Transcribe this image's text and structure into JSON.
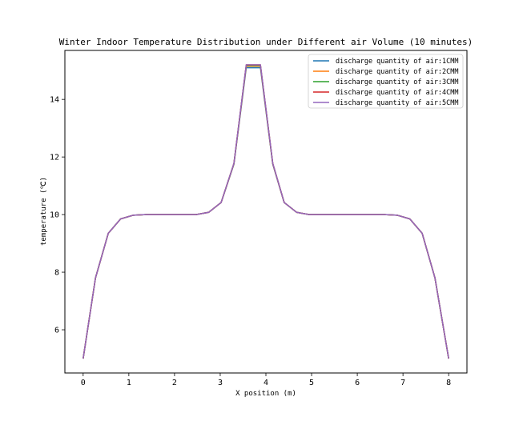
{
  "chart_data": {
    "type": "line",
    "title": "Winter Indoor Temperature Distribution under Different air Volume (10 minutes)",
    "xlabel": "X position (m)",
    "ylabel": "temperature (℃)",
    "xlim": [
      -0.4,
      8.4
    ],
    "ylim": [
      4.5,
      15.7
    ],
    "xticks": [
      0,
      1,
      2,
      3,
      4,
      5,
      6,
      7,
      8
    ],
    "yticks": [
      6,
      8,
      10,
      12,
      14
    ],
    "grid": false,
    "legend_position": "top-right",
    "x": [
      0,
      0.27,
      0.55,
      0.82,
      1.1,
      1.37,
      1.65,
      1.92,
      2.2,
      2.47,
      2.75,
      3.02,
      3.3,
      3.57,
      3.6,
      3.85,
      3.88,
      4.15,
      4.4,
      4.67,
      4.95,
      5.22,
      5.5,
      5.77,
      6.05,
      6.32,
      6.6,
      6.87,
      7.15,
      7.42,
      7.7,
      8.0
    ],
    "series": [
      {
        "name": "discharge quantity of air:1CMM",
        "color": "#1f77b4",
        "values": [
          5.0,
          7.8,
          9.35,
          9.85,
          9.98,
          10.0,
          10.0,
          10.0,
          10.0,
          10.0,
          10.08,
          10.42,
          11.75,
          15.1,
          15.1,
          15.1,
          15.1,
          11.75,
          10.42,
          10.08,
          10.0,
          10.0,
          10.0,
          10.0,
          10.0,
          10.0,
          10.0,
          9.98,
          9.85,
          9.35,
          7.8,
          5.0
        ]
      },
      {
        "name": "discharge quantity of air:2CMM",
        "color": "#ff7f0e",
        "values": [
          5.0,
          7.8,
          9.35,
          9.85,
          9.98,
          10.0,
          10.0,
          10.0,
          10.0,
          10.0,
          10.08,
          10.42,
          11.76,
          15.15,
          15.15,
          15.15,
          15.15,
          11.76,
          10.42,
          10.08,
          10.0,
          10.0,
          10.0,
          10.0,
          10.0,
          10.0,
          10.0,
          9.98,
          9.85,
          9.35,
          7.8,
          5.0
        ]
      },
      {
        "name": "discharge quantity of air:3CMM",
        "color": "#2ca02c",
        "values": [
          5.0,
          7.8,
          9.35,
          9.85,
          9.98,
          10.0,
          10.0,
          10.0,
          10.0,
          10.0,
          10.08,
          10.42,
          11.77,
          15.18,
          15.18,
          15.18,
          15.18,
          11.77,
          10.42,
          10.08,
          10.0,
          10.0,
          10.0,
          10.0,
          10.0,
          10.0,
          10.0,
          9.98,
          9.85,
          9.35,
          7.8,
          5.0
        ]
      },
      {
        "name": "discharge quantity of air:4CMM",
        "color": "#d62728",
        "values": [
          5.0,
          7.8,
          9.35,
          9.85,
          9.98,
          10.0,
          10.0,
          10.0,
          10.0,
          10.0,
          10.08,
          10.42,
          11.78,
          15.2,
          15.2,
          15.2,
          15.2,
          11.78,
          10.42,
          10.08,
          10.0,
          10.0,
          10.0,
          10.0,
          10.0,
          10.0,
          10.0,
          9.98,
          9.85,
          9.35,
          7.8,
          5.0
        ]
      },
      {
        "name": "discharge quantity of air:5CMM",
        "color": "#9467bd",
        "values": [
          5.0,
          7.8,
          9.35,
          9.85,
          9.98,
          10.0,
          10.0,
          10.0,
          10.0,
          10.0,
          10.08,
          10.42,
          11.78,
          15.2,
          15.2,
          15.2,
          15.2,
          11.78,
          10.42,
          10.08,
          10.0,
          10.0,
          10.0,
          10.0,
          10.0,
          10.0,
          10.0,
          9.98,
          9.85,
          9.35,
          7.8,
          5.0
        ]
      }
    ]
  }
}
